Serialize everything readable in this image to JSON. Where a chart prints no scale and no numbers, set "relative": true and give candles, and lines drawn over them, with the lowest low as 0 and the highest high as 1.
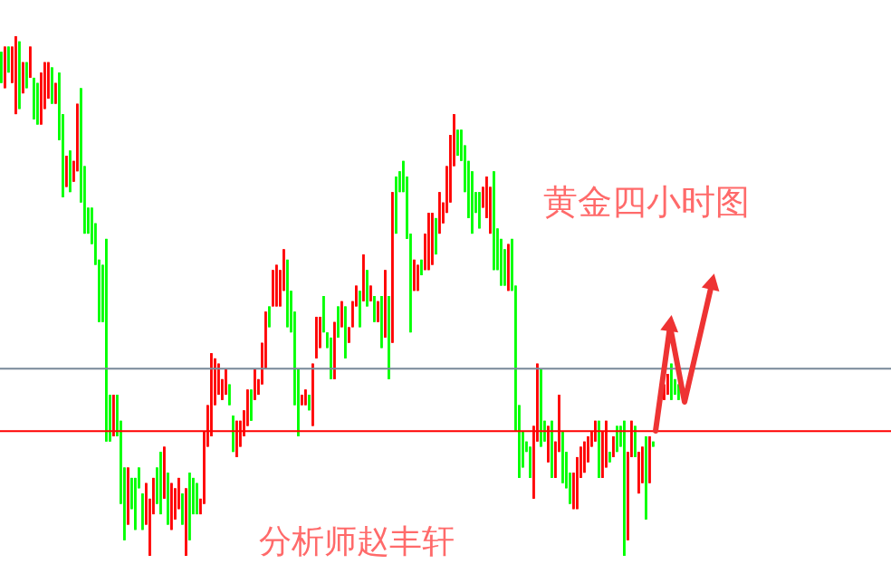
{
  "chart_data": {
    "type": "candlestick",
    "relative": true,
    "title": "黄金四小时图",
    "annotations": [
      "分析师赵丰轩"
    ],
    "ref_lines": [
      {
        "axis": "y",
        "value": 0.36,
        "color": "#778899"
      },
      {
        "axis": "y",
        "value": 0.24,
        "color": "#ff0000"
      }
    ],
    "categories": [
      null,
      null,
      null,
      null,
      null,
      null,
      null,
      null,
      null,
      null,
      null,
      null,
      null,
      null,
      null,
      null,
      null,
      null,
      null,
      null,
      null,
      null,
      null,
      null,
      null,
      null,
      null,
      null,
      null,
      null,
      null,
      null,
      null,
      null,
      null,
      null,
      null,
      null,
      null,
      null,
      null,
      null,
      null,
      null,
      null,
      null,
      null,
      null,
      null,
      null,
      null,
      null,
      null,
      null,
      null,
      null,
      null,
      null,
      null,
      null,
      null,
      null,
      null,
      null,
      null,
      null,
      null,
      null,
      null,
      null,
      null,
      null,
      null,
      null,
      null,
      null,
      null,
      null,
      null,
      null,
      null,
      null,
      null,
      null,
      null,
      null,
      null,
      null,
      null,
      null,
      null,
      null,
      null,
      null,
      null,
      null,
      null,
      null,
      null,
      null,
      null,
      null,
      null,
      null,
      null,
      null,
      null,
      null,
      null,
      null,
      null,
      null,
      null,
      null,
      null,
      null,
      null,
      null,
      null,
      null,
      null,
      null,
      null,
      null,
      null,
      null,
      null,
      null,
      null,
      null,
      null,
      null,
      null,
      null,
      null,
      null,
      null,
      null,
      null,
      null,
      null,
      null,
      null,
      null,
      null,
      null,
      null,
      null,
      null,
      null,
      null,
      null,
      null,
      null,
      null,
      null,
      null,
      null,
      null,
      null,
      null,
      null,
      null,
      null,
      null,
      null,
      null,
      null,
      null,
      null,
      null,
      null,
      null,
      null,
      null,
      null,
      null,
      null,
      null,
      null,
      null,
      null,
      null,
      null,
      null,
      null,
      null,
      null
    ],
    "ohlc": [
      [
        0.97,
        0.97,
        0.91,
        0.91
      ],
      [
        0.9,
        0.98,
        0.9,
        0.98
      ],
      [
        0.98,
        0.98,
        0.93,
        0.93
      ],
      [
        0.91,
        0.98,
        0.91,
        0.98
      ],
      [
        0.85,
        1.0,
        0.85,
        1.0
      ],
      [
        0.99,
        0.99,
        0.86,
        0.86
      ],
      [
        0.89,
        0.95,
        0.89,
        0.95
      ],
      [
        0.95,
        0.95,
        0.9,
        0.9
      ],
      [
        0.92,
        0.98,
        0.92,
        0.98
      ],
      [
        0.92,
        0.92,
        0.84,
        0.84
      ],
      [
        0.91,
        0.91,
        0.83,
        0.83
      ],
      [
        0.83,
        0.93,
        0.83,
        0.93
      ],
      [
        0.86,
        0.95,
        0.86,
        0.95
      ],
      [
        0.88,
        0.95,
        0.88,
        0.95
      ],
      [
        0.94,
        0.94,
        0.87,
        0.87
      ],
      [
        0.87,
        0.91,
        0.87,
        0.91
      ],
      [
        0.93,
        0.93,
        0.8,
        0.8
      ],
      [
        0.85,
        0.85,
        0.69,
        0.69
      ],
      [
        0.71,
        0.77,
        0.71,
        0.77
      ],
      [
        0.78,
        0.78,
        0.7,
        0.7
      ],
      [
        0.72,
        0.76,
        0.72,
        0.76
      ],
      [
        0.74,
        0.87,
        0.74,
        0.87
      ],
      [
        0.9,
        0.9,
        0.68,
        0.68
      ],
      [
        0.75,
        0.75,
        0.62,
        0.62
      ],
      [
        0.67,
        0.67,
        0.62,
        0.62
      ],
      [
        0.67,
        0.67,
        0.6,
        0.6
      ],
      [
        0.64,
        0.64,
        0.56,
        0.56
      ],
      [
        0.57,
        0.57,
        0.45,
        0.45
      ],
      [
        0.56,
        0.56,
        0.45,
        0.45
      ],
      [
        0.61,
        0.61,
        0.22,
        0.22
      ],
      [
        0.31,
        0.31,
        0.22,
        0.22
      ],
      [
        0.23,
        0.31,
        0.23,
        0.31
      ],
      [
        0.31,
        0.31,
        0.23,
        0.23
      ],
      [
        0.26,
        0.26,
        0.1,
        0.1
      ],
      [
        0.17,
        0.17,
        0.03,
        0.03
      ],
      [
        0.06,
        0.17,
        0.06,
        0.17
      ],
      [
        0.15,
        0.15,
        0.09,
        0.09
      ],
      [
        0.15,
        0.15,
        0.05,
        0.05
      ],
      [
        0.17,
        0.17,
        0.13,
        0.13
      ],
      [
        0.12,
        0.12,
        0.05,
        0.05
      ],
      [
        0.06,
        0.14,
        0.06,
        0.14
      ],
      [
        0.0,
        0.11,
        0.0,
        0.11
      ],
      [
        0.08,
        0.15,
        0.08,
        0.15
      ],
      [
        0.17,
        0.17,
        0.1,
        0.1
      ],
      [
        0.2,
        0.2,
        0.08,
        0.08
      ],
      [
        0.11,
        0.21,
        0.11,
        0.21
      ],
      [
        0.16,
        0.16,
        0.06,
        0.06
      ],
      [
        0.05,
        0.14,
        0.05,
        0.14
      ],
      [
        0.07,
        0.13,
        0.07,
        0.13
      ],
      [
        0.09,
        0.15,
        0.09,
        0.15
      ],
      [
        0.12,
        0.12,
        0.06,
        0.06
      ],
      [
        0.0,
        0.13,
        0.0,
        0.13
      ],
      [
        0.16,
        0.16,
        0.03,
        0.03
      ],
      [
        0.15,
        0.15,
        0.08,
        0.08
      ],
      [
        0.14,
        0.14,
        0.08,
        0.08
      ],
      [
        0.08,
        0.11,
        0.08,
        0.11
      ],
      [
        0.1,
        0.24,
        0.1,
        0.24
      ],
      [
        0.21,
        0.29,
        0.21,
        0.29
      ],
      [
        0.23,
        0.39,
        0.23,
        0.39
      ],
      [
        0.29,
        0.38,
        0.29,
        0.38
      ],
      [
        0.31,
        0.37,
        0.31,
        0.37
      ],
      [
        0.3,
        0.34,
        0.3,
        0.34
      ],
      [
        0.31,
        0.36,
        0.31,
        0.36
      ],
      [
        0.33,
        0.33,
        0.29,
        0.29
      ],
      [
        0.27,
        0.27,
        0.2,
        0.2
      ],
      [
        0.19,
        0.26,
        0.19,
        0.26
      ],
      [
        0.21,
        0.26,
        0.21,
        0.26
      ],
      [
        0.23,
        0.28,
        0.23,
        0.28
      ],
      [
        0.25,
        0.32,
        0.25,
        0.32
      ],
      [
        0.32,
        0.32,
        0.26,
        0.26
      ],
      [
        0.3,
        0.36,
        0.3,
        0.36
      ],
      [
        0.31,
        0.34,
        0.31,
        0.34
      ],
      [
        0.33,
        0.41,
        0.33,
        0.41
      ],
      [
        0.36,
        0.47,
        0.36,
        0.47
      ],
      [
        0.48,
        0.48,
        0.44,
        0.44
      ],
      [
        0.48,
        0.55,
        0.48,
        0.55
      ],
      [
        0.48,
        0.56,
        0.48,
        0.56
      ],
      [
        0.48,
        0.55,
        0.48,
        0.55
      ],
      [
        0.51,
        0.59,
        0.51,
        0.59
      ],
      [
        0.57,
        0.57,
        0.44,
        0.44
      ],
      [
        0.51,
        0.51,
        0.43,
        0.43
      ],
      [
        0.47,
        0.47,
        0.29,
        0.29
      ],
      [
        0.36,
        0.36,
        0.23,
        0.23
      ],
      [
        0.29,
        0.31,
        0.29,
        0.31
      ],
      [
        0.29,
        0.32,
        0.29,
        0.32
      ],
      [
        0.31,
        0.31,
        0.28,
        0.28
      ],
      [
        0.25,
        0.37,
        0.25,
        0.37
      ],
      [
        0.38,
        0.46,
        0.38,
        0.46
      ],
      [
        0.4,
        0.46,
        0.4,
        0.46
      ],
      [
        0.5,
        0.5,
        0.43,
        0.43
      ],
      [
        0.43,
        0.43,
        0.4,
        0.4
      ],
      [
        0.42,
        0.42,
        0.34,
        0.34
      ],
      [
        0.34,
        0.45,
        0.34,
        0.45
      ],
      [
        0.48,
        0.48,
        0.42,
        0.42
      ],
      [
        0.44,
        0.49,
        0.44,
        0.49
      ],
      [
        0.48,
        0.48,
        0.38,
        0.38
      ],
      [
        0.41,
        0.44,
        0.41,
        0.44
      ],
      [
        0.44,
        0.49,
        0.44,
        0.49
      ],
      [
        0.48,
        0.52,
        0.48,
        0.52
      ],
      [
        0.51,
        0.51,
        0.44,
        0.44
      ],
      [
        0.49,
        0.58,
        0.49,
        0.58
      ],
      [
        0.55,
        0.55,
        0.48,
        0.48
      ],
      [
        0.49,
        0.52,
        0.49,
        0.52
      ],
      [
        0.5,
        0.5,
        0.45,
        0.45
      ],
      [
        0.45,
        0.49,
        0.45,
        0.49
      ],
      [
        0.5,
        0.5,
        0.4,
        0.4
      ],
      [
        0.42,
        0.55,
        0.42,
        0.55
      ],
      [
        0.5,
        0.5,
        0.34,
        0.34
      ],
      [
        0.41,
        0.7,
        0.41,
        0.7
      ],
      [
        0.73,
        0.73,
        0.62,
        0.62
      ],
      [
        0.74,
        0.74,
        0.7,
        0.7
      ],
      [
        0.76,
        0.76,
        0.7,
        0.7
      ],
      [
        0.73,
        0.73,
        0.61,
        0.61
      ],
      [
        0.62,
        0.62,
        0.43,
        0.43
      ],
      [
        0.51,
        0.57,
        0.51,
        0.57
      ],
      [
        0.51,
        0.56,
        0.51,
        0.56
      ],
      [
        0.57,
        0.57,
        0.54,
        0.54
      ],
      [
        0.55,
        0.62,
        0.55,
        0.62
      ],
      [
        0.55,
        0.66,
        0.55,
        0.66
      ],
      [
        0.56,
        0.66,
        0.56,
        0.66
      ],
      [
        0.65,
        0.65,
        0.58,
        0.58
      ],
      [
        0.62,
        0.7,
        0.62,
        0.7
      ],
      [
        0.64,
        0.68,
        0.64,
        0.68
      ],
      [
        0.66,
        0.75,
        0.66,
        0.75
      ],
      [
        0.68,
        0.81,
        0.68,
        0.81
      ],
      [
        0.75,
        0.85,
        0.75,
        0.85
      ],
      [
        0.82,
        0.82,
        0.77,
        0.77
      ],
      [
        0.82,
        0.82,
        0.76,
        0.76
      ],
      [
        0.79,
        0.79,
        0.7,
        0.7
      ],
      [
        0.76,
        0.76,
        0.65,
        0.65
      ],
      [
        0.74,
        0.74,
        0.62,
        0.62
      ],
      [
        0.7,
        0.7,
        0.66,
        0.66
      ],
      [
        0.7,
        0.7,
        0.63,
        0.63
      ],
      [
        0.67,
        0.71,
        0.67,
        0.71
      ],
      [
        0.65,
        0.73,
        0.65,
        0.73
      ],
      [
        0.62,
        0.71,
        0.62,
        0.71
      ],
      [
        0.74,
        0.74,
        0.55,
        0.55
      ],
      [
        0.63,
        0.63,
        0.55,
        0.55
      ],
      [
        0.61,
        0.61,
        0.52,
        0.52
      ],
      [
        0.59,
        0.59,
        0.52,
        0.52
      ],
      [
        0.51,
        0.6,
        0.51,
        0.6
      ],
      [
        0.61,
        0.61,
        0.51,
        0.51
      ],
      [
        0.52,
        0.52,
        0.24,
        0.24
      ],
      [
        0.29,
        0.29,
        0.15,
        0.15
      ],
      [
        0.24,
        0.24,
        0.17,
        0.17
      ],
      [
        0.22,
        0.22,
        0.2,
        0.2
      ],
      [
        0.21,
        0.21,
        0.15,
        0.15
      ],
      [
        0.11,
        0.25,
        0.11,
        0.25
      ],
      [
        0.22,
        0.37,
        0.22,
        0.37
      ],
      [
        0.36,
        0.36,
        0.21,
        0.21
      ],
      [
        0.26,
        0.26,
        0.22,
        0.22
      ],
      [
        0.18,
        0.25,
        0.18,
        0.25
      ],
      [
        0.26,
        0.26,
        0.15,
        0.15
      ],
      [
        0.15,
        0.22,
        0.15,
        0.22
      ],
      [
        0.2,
        0.31,
        0.2,
        0.31
      ],
      [
        0.24,
        0.24,
        0.14,
        0.14
      ],
      [
        0.2,
        0.2,
        0.13,
        0.13
      ],
      [
        0.16,
        0.16,
        0.1,
        0.1
      ],
      [
        0.09,
        0.16,
        0.09,
        0.16
      ],
      [
        0.09,
        0.19,
        0.09,
        0.19
      ],
      [
        0.15,
        0.21,
        0.15,
        0.21
      ],
      [
        0.16,
        0.22,
        0.16,
        0.22
      ],
      [
        0.18,
        0.23,
        0.18,
        0.23
      ],
      [
        0.21,
        0.24,
        0.21,
        0.24
      ],
      [
        0.22,
        0.26,
        0.22,
        0.26
      ],
      [
        0.26,
        0.26,
        0.15,
        0.15
      ],
      [
        0.15,
        0.24,
        0.15,
        0.24
      ],
      [
        0.17,
        0.26,
        0.17,
        0.26
      ],
      [
        0.2,
        0.2,
        0.18,
        0.18
      ],
      [
        0.19,
        0.23,
        0.19,
        0.23
      ],
      [
        0.25,
        0.25,
        0.2,
        0.2
      ],
      [
        0.25,
        0.25,
        0.21,
        0.21
      ],
      [
        0.26,
        0.26,
        0.0,
        0.0
      ],
      [
        0.03,
        0.2,
        0.03,
        0.2
      ],
      [
        0.19,
        0.26,
        0.19,
        0.26
      ],
      [
        0.25,
        0.25,
        0.19,
        0.19
      ],
      [
        0.12,
        0.2,
        0.12,
        0.2
      ],
      [
        0.14,
        0.21,
        0.14,
        0.21
      ],
      [
        0.23,
        0.23,
        0.07,
        0.07
      ],
      [
        0.14,
        0.23,
        0.14,
        0.23
      ],
      [
        0.22,
        0.22,
        0.21,
        0.21
      ],
      null,
      [
        0.3,
        0.33,
        0.3,
        0.33
      ],
      [
        0.3,
        0.33,
        0.3,
        0.33
      ],
      [
        0.31,
        0.35,
        0.31,
        0.35
      ],
      [
        0.37,
        0.37,
        0.3,
        0.3
      ],
      [
        0.34,
        0.34,
        0.31,
        0.31
      ],
      [
        0.33,
        0.33,
        0.3,
        0.3
      ]
    ],
    "colors": [
      "#00ff00",
      "#ff0000",
      "#00ff00",
      "#ff0000",
      "#ff0000",
      "#00ff00",
      "#ff0000",
      "#00ff00",
      "#ff0000",
      "#00ff00",
      "#00ff00",
      "#ff0000",
      "#ff0000",
      "#ff0000",
      "#00ff00",
      "#ff0000",
      "#00ff00",
      "#00ff00",
      "#ff0000",
      "#00ff00",
      "#ff0000",
      "#ff0000",
      "#00ff00",
      "#00ff00",
      "#00ff00",
      "#00ff00",
      "#00ff00",
      "#00ff00",
      "#00ff00",
      "#00ff00",
      "#00ff00",
      "#ff0000",
      "#00ff00",
      "#00ff00",
      "#00ff00",
      "#ff0000",
      "#00ff00",
      "#00ff00",
      "#00ff00",
      "#00ff00",
      "#ff0000",
      "#ff0000",
      "#ff0000",
      "#00ff00",
      "#00ff00",
      "#ff0000",
      "#00ff00",
      "#ff0000",
      "#ff0000",
      "#ff0000",
      "#00ff00",
      "#ff0000",
      "#00ff00",
      "#00ff00",
      "#00ff00",
      "#ff0000",
      "#ff0000",
      "#ff0000",
      "#ff0000",
      "#ff0000",
      "#ff0000",
      "#ff0000",
      "#ff0000",
      "#00ff00",
      "#00ff00",
      "#ff0000",
      "#ff0000",
      "#ff0000",
      "#ff0000",
      "#00ff00",
      "#ff0000",
      "#ff0000",
      "#ff0000",
      "#ff0000",
      "#00ff00",
      "#ff0000",
      "#ff0000",
      "#ff0000",
      "#ff0000",
      "#00ff00",
      "#00ff00",
      "#00ff00",
      "#00ff00",
      "#ff0000",
      "#ff0000",
      "#00ff00",
      "#ff0000",
      "#ff0000",
      "#ff0000",
      "#00ff00",
      "#00ff00",
      "#00ff00",
      "#ff0000",
      "#00ff00",
      "#ff0000",
      "#00ff00",
      "#ff0000",
      "#ff0000",
      "#ff0000",
      "#00ff00",
      "#ff0000",
      "#00ff00",
      "#ff0000",
      "#00ff00",
      "#ff0000",
      "#00ff00",
      "#ff0000",
      "#00ff00",
      "#ff0000",
      "#00ff00",
      "#00ff00",
      "#00ff00",
      "#00ff00",
      "#00ff00",
      "#ff0000",
      "#ff0000",
      "#00ff00",
      "#ff0000",
      "#ff0000",
      "#ff0000",
      "#00ff00",
      "#ff0000",
      "#ff0000",
      "#ff0000",
      "#ff0000",
      "#ff0000",
      "#00ff00",
      "#00ff00",
      "#00ff00",
      "#00ff00",
      "#00ff00",
      "#00ff00",
      "#00ff00",
      "#ff0000",
      "#ff0000",
      "#ff0000",
      "#00ff00",
      "#00ff00",
      "#00ff00",
      "#00ff00",
      "#ff0000",
      "#00ff00",
      "#00ff00",
      "#00ff00",
      "#00ff00",
      "#00ff00",
      "#00ff00",
      "#ff0000",
      "#ff0000",
      "#00ff00",
      "#00ff00",
      "#ff0000",
      "#00ff00",
      "#ff0000",
      "#ff0000",
      "#00ff00",
      "#00ff00",
      "#00ff00",
      "#ff0000",
      "#ff0000",
      "#ff0000",
      "#ff0000",
      "#ff0000",
      "#ff0000",
      "#ff0000",
      "#00ff00",
      "#ff0000",
      "#ff0000",
      "#00ff00",
      "#ff0000",
      "#00ff00",
      "#00ff00",
      "#00ff00",
      "#ff0000",
      "#ff0000",
      "#00ff00",
      "#ff0000",
      "#ff0000",
      "#00ff00",
      "#ff0000",
      "#00ff00",
      null,
      "#ff0000",
      "#ff0000",
      "#ff0000",
      "#00ff00",
      "#00ff00",
      "#00ff00"
    ]
  }
}
